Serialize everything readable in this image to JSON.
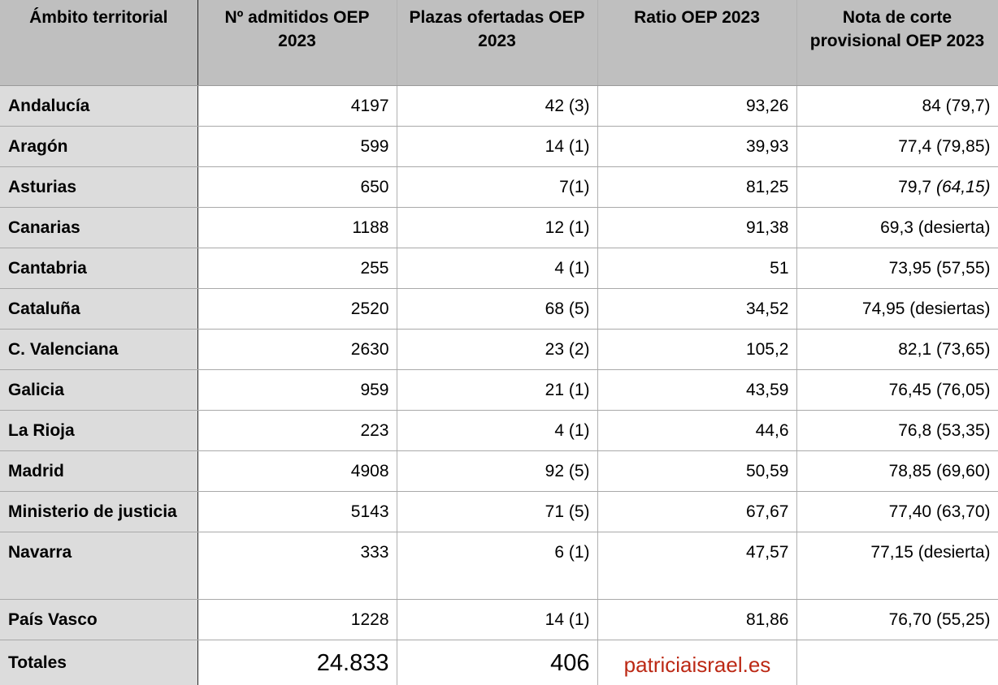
{
  "table": {
    "columns": [
      {
        "label": "Ámbito territorial"
      },
      {
        "label": "Nº admitidos OEP 2023"
      },
      {
        "label": "Plazas ofertadas OEP 2023"
      },
      {
        "label": "Ratio OEP 2023"
      },
      {
        "label": "Nota de corte provisional OEP 2023"
      }
    ],
    "rows": [
      {
        "territory": "Andalucía",
        "admitted": "4197",
        "plazas": "42 (3)",
        "ratio": "93,26",
        "nota": "84 (79,7)"
      },
      {
        "territory": "Aragón",
        "admitted": "599",
        "plazas": "14 (1)",
        "ratio": "39,93",
        "nota": "77,4 (79,85)"
      },
      {
        "territory": "Asturias",
        "admitted": "650",
        "plazas": "7(1)",
        "ratio": "81,25",
        "nota": "79,7 ",
        "nota_italic": "(64,15)"
      },
      {
        "territory": "Canarias",
        "admitted": "1188",
        "plazas": "12 (1)",
        "ratio": "91,38",
        "nota": "69,3 (desierta)"
      },
      {
        "territory": "Cantabria",
        "admitted": "255",
        "plazas": "4 (1)",
        "ratio": "51",
        "nota": "73,95 (57,55)"
      },
      {
        "territory": "Cataluña",
        "admitted": "2520",
        "plazas": "68 (5)",
        "ratio": "34,52",
        "nota": "74,95 (desiertas)"
      },
      {
        "territory": "C. Valenciana",
        "admitted": "2630",
        "plazas": "23 (2)",
        "ratio": "105,2",
        "nota": "82,1 (73,65)"
      },
      {
        "territory": "Galicia",
        "admitted": "959",
        "plazas": "21 (1)",
        "ratio": "43,59",
        "nota": "76,45 (76,05)"
      },
      {
        "territory": "La Rioja",
        "admitted": "223",
        "plazas": "4 (1)",
        "ratio": "44,6",
        "nota": "76,8 (53,35)"
      },
      {
        "territory": "Madrid",
        "admitted": "4908",
        "plazas": "92 (5)",
        "ratio": "50,59",
        "nota": "78,85 (69,60)"
      },
      {
        "territory": "Ministerio de justicia",
        "admitted": "5143",
        "plazas": "71 (5)",
        "ratio": "67,67",
        "nota": "77,40 (63,70)"
      },
      {
        "territory": "Navarra",
        "admitted": "333",
        "plazas": "6 (1)",
        "ratio": "47,57",
        "nota": "77,15 (desierta)"
      },
      {
        "territory": "País Vasco",
        "admitted": "1228",
        "plazas": "14 (1)",
        "ratio": "81,86",
        "nota": "76,70 (55,25)"
      }
    ],
    "totals": {
      "label": "Totales",
      "admitted": "24.833",
      "plazas": "406",
      "watermark": "patriciaisrael.es",
      "ratio_cell": "",
      "nota_cell": ""
    }
  },
  "colors": {
    "header_background": "#bfbfbf",
    "first_column_background": "#dcdcdc",
    "cell_background": "#ffffff",
    "border_light": "#a9a9a9",
    "border_dark": "#262626",
    "watermark_red": "#bc2915",
    "text": "#000000"
  }
}
